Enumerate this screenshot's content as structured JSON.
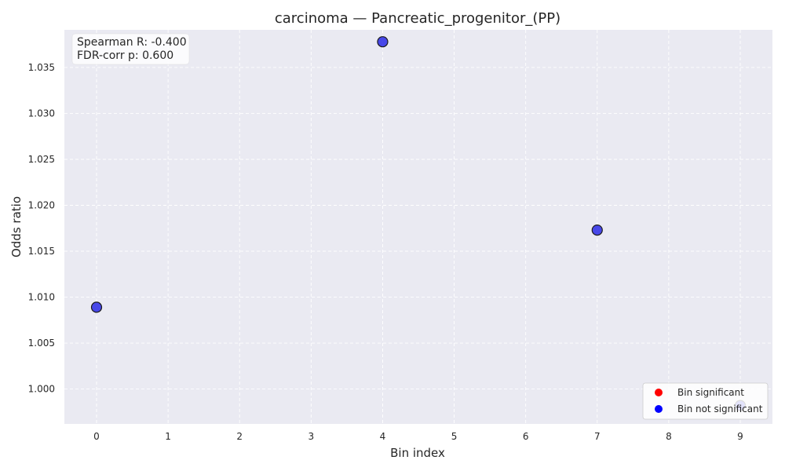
{
  "chart_data": {
    "type": "scatter",
    "title": "carcinoma — Pancreatic_progenitor_(PP)",
    "xlabel": "Bin index",
    "ylabel": "Odds ratio",
    "xlim": [
      -0.45,
      9.45
    ],
    "ylim": [
      0.9962,
      1.0391
    ],
    "x_ticks": [
      0,
      1,
      2,
      3,
      4,
      5,
      6,
      7,
      8,
      9
    ],
    "y_ticks": [
      1.0,
      1.005,
      1.01,
      1.015,
      1.02,
      1.025,
      1.03,
      1.035
    ],
    "y_tick_labels": [
      "1.000",
      "1.005",
      "1.010",
      "1.015",
      "1.020",
      "1.025",
      "1.030",
      "1.035"
    ],
    "grid": true,
    "legend_position": "lower-right",
    "series": [
      {
        "name": "Bin significant",
        "color": "#ff0000",
        "x": [],
        "y": []
      },
      {
        "name": "Bin not significant",
        "color": "#0000ff",
        "x": [
          0,
          4,
          7,
          9
        ],
        "y": [
          1.0089,
          1.0378,
          1.0173,
          0.9982
        ]
      }
    ],
    "point_color": "#2a2ae6",
    "point_edge_color": "#1a1a1a",
    "annotation": {
      "line1": "Spearman R: -0.400",
      "line2": "FDR-corr p: 0.600"
    },
    "colors": {
      "plot_background": "#eaeaf2",
      "grid": "#ffffff"
    }
  }
}
